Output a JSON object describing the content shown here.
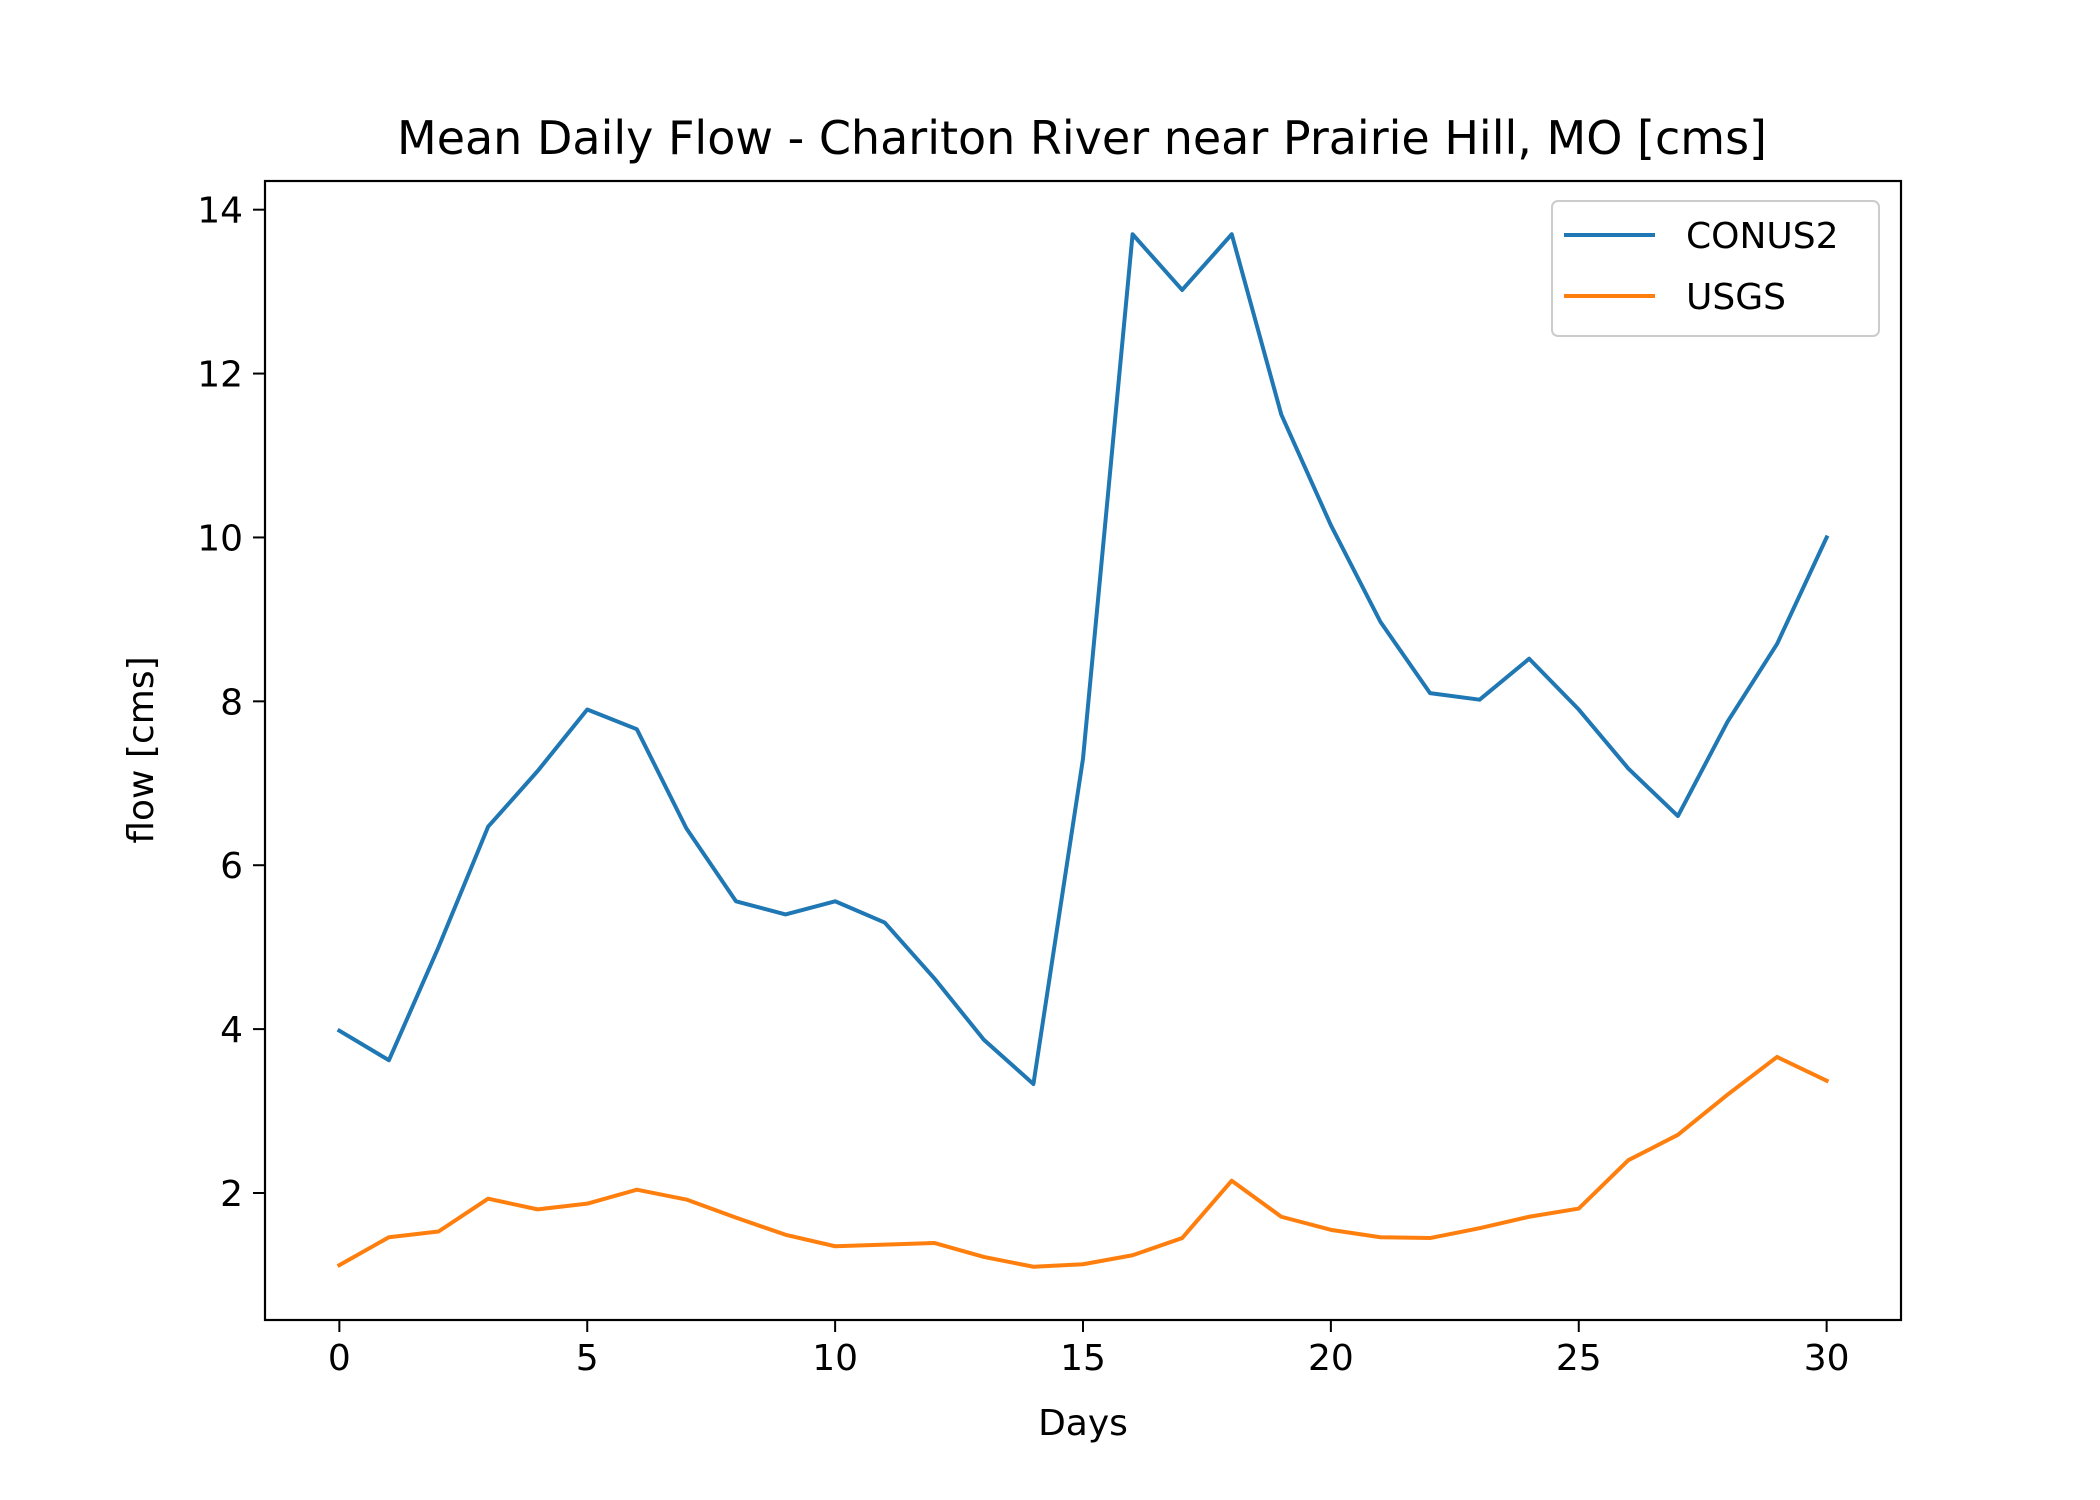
{
  "chart_data": {
    "type": "line",
    "title": "Mean Daily Flow - Chariton River near Prairie Hill, MO [cms]",
    "xlabel": "Days",
    "ylabel": "flow [cms]",
    "xlim": [
      -1.5,
      31.5
    ],
    "ylim": [
      0.45,
      14.35
    ],
    "xticks": [
      0,
      5,
      10,
      15,
      20,
      25,
      30
    ],
    "yticks": [
      2,
      4,
      6,
      8,
      10,
      12,
      14
    ],
    "grid": false,
    "legend_position": "upper right",
    "x": [
      0,
      1,
      2,
      3,
      4,
      5,
      6,
      7,
      8,
      9,
      10,
      11,
      12,
      13,
      14,
      15,
      16,
      17,
      18,
      19,
      20,
      21,
      22,
      23,
      24,
      25,
      26,
      27,
      28,
      29,
      30
    ],
    "series": [
      {
        "name": "CONUS2",
        "color": "#1f77b4",
        "values": [
          3.98,
          3.62,
          5.0,
          6.47,
          7.15,
          7.9,
          7.66,
          6.45,
          5.56,
          5.4,
          5.56,
          5.3,
          4.62,
          3.87,
          3.33,
          7.3,
          13.7,
          13.02,
          13.7,
          11.5,
          10.15,
          8.97,
          8.1,
          8.02,
          8.52,
          7.9,
          7.18,
          6.6,
          7.75,
          8.7,
          10.0
        ]
      },
      {
        "name": "USGS",
        "color": "#ff7f0e",
        "values": [
          1.12,
          1.46,
          1.53,
          1.93,
          1.8,
          1.87,
          2.04,
          1.92,
          1.7,
          1.49,
          1.35,
          1.37,
          1.39,
          1.22,
          1.1,
          1.13,
          1.24,
          1.45,
          2.15,
          1.71,
          1.55,
          1.46,
          1.45,
          1.57,
          1.71,
          1.81,
          2.4,
          2.71,
          3.2,
          3.66,
          3.37
        ]
      }
    ]
  }
}
